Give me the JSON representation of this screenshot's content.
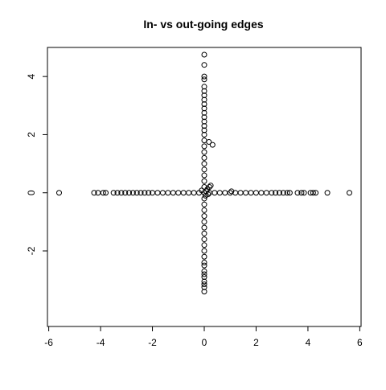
{
  "chart_data": {
    "type": "scatter",
    "title": "In- vs out-going edges",
    "xlabel": "",
    "ylabel": "",
    "xlim": [
      -6.05,
      6.05
    ],
    "ylim": [
      -4.6,
      5.0
    ],
    "xticks": [
      -6,
      -4,
      -2,
      0,
      2,
      4,
      6
    ],
    "xtick_labels": [
      "-6",
      "-4",
      "-2",
      "0",
      "2",
      "4",
      "6"
    ],
    "yticks": [
      -2,
      0,
      2,
      4
    ],
    "ytick_labels": [
      "-2",
      "0",
      "2",
      "4"
    ],
    "marker": "open-circle",
    "grid": false,
    "legend": "none",
    "series": [
      {
        "points": [
          [
            -5.6,
            0
          ],
          [
            -4.25,
            0
          ],
          [
            -4.1,
            0
          ],
          [
            -3.9,
            0
          ],
          [
            -3.8,
            0
          ],
          [
            -3.5,
            0
          ],
          [
            -3.35,
            0
          ],
          [
            -3.2,
            0
          ],
          [
            -3.05,
            0
          ],
          [
            -2.9,
            0
          ],
          [
            -2.75,
            0
          ],
          [
            -2.6,
            0
          ],
          [
            -2.45,
            0
          ],
          [
            -2.3,
            0
          ],
          [
            -2.15,
            0
          ],
          [
            -2.0,
            0
          ],
          [
            -1.8,
            0
          ],
          [
            -1.6,
            0
          ],
          [
            -1.4,
            0
          ],
          [
            -1.2,
            0
          ],
          [
            -1.0,
            0
          ],
          [
            -0.8,
            0
          ],
          [
            -0.6,
            0
          ],
          [
            -0.4,
            0
          ],
          [
            -0.2,
            0
          ],
          [
            0.2,
            0
          ],
          [
            0.4,
            0
          ],
          [
            0.6,
            0
          ],
          [
            0.8,
            0
          ],
          [
            1.0,
            0
          ],
          [
            1.2,
            0
          ],
          [
            1.4,
            0
          ],
          [
            1.6,
            0
          ],
          [
            1.8,
            0
          ],
          [
            2.0,
            0
          ],
          [
            2.2,
            0
          ],
          [
            2.4,
            0
          ],
          [
            2.6,
            0
          ],
          [
            2.75,
            0
          ],
          [
            2.9,
            0
          ],
          [
            3.05,
            0
          ],
          [
            3.2,
            0
          ],
          [
            3.3,
            0
          ],
          [
            3.6,
            0
          ],
          [
            3.75,
            0
          ],
          [
            3.85,
            0
          ],
          [
            4.1,
            0
          ],
          [
            4.2,
            0
          ],
          [
            4.3,
            0
          ],
          [
            4.75,
            0
          ],
          [
            5.6,
            0
          ],
          [
            0,
            4.75
          ],
          [
            0,
            4.4
          ],
          [
            0,
            4.0
          ],
          [
            0,
            3.9
          ],
          [
            0,
            3.65
          ],
          [
            0,
            3.5
          ],
          [
            0,
            3.35
          ],
          [
            0,
            3.2
          ],
          [
            0,
            3.05
          ],
          [
            0,
            2.9
          ],
          [
            0,
            2.75
          ],
          [
            0,
            2.6
          ],
          [
            0,
            2.45
          ],
          [
            0,
            2.3
          ],
          [
            0,
            2.15
          ],
          [
            0,
            2.0
          ],
          [
            0,
            1.8
          ],
          [
            0,
            1.6
          ],
          [
            0,
            1.4
          ],
          [
            0,
            1.2
          ],
          [
            0,
            1.0
          ],
          [
            0,
            0.8
          ],
          [
            0,
            0.6
          ],
          [
            0,
            0.4
          ],
          [
            0,
            0.2
          ],
          [
            0,
            0
          ],
          [
            0,
            -0.2
          ],
          [
            0,
            -0.4
          ],
          [
            0,
            -0.6
          ],
          [
            0,
            -0.8
          ],
          [
            0,
            -1.0
          ],
          [
            0,
            -1.2
          ],
          [
            0,
            -1.4
          ],
          [
            0,
            -1.6
          ],
          [
            0,
            -1.8
          ],
          [
            0,
            -2.0
          ],
          [
            0,
            -2.2
          ],
          [
            0,
            -2.4
          ],
          [
            0,
            -2.5
          ],
          [
            0,
            -2.7
          ],
          [
            0,
            -2.8
          ],
          [
            0,
            -2.9
          ],
          [
            0,
            -3.05
          ],
          [
            0,
            -3.15
          ],
          [
            0,
            -3.25
          ],
          [
            0,
            -3.4
          ],
          [
            0.18,
            1.75
          ],
          [
            0.32,
            1.65
          ],
          [
            0.25,
            0.25
          ],
          [
            0.2,
            0.2
          ],
          [
            0.12,
            0.12
          ],
          [
            1.05,
            0.05
          ],
          [
            0.08,
            0.05
          ],
          [
            0.15,
            -0.05
          ],
          [
            -0.1,
            0.08
          ],
          [
            0.05,
            -0.1
          ]
        ]
      }
    ]
  }
}
